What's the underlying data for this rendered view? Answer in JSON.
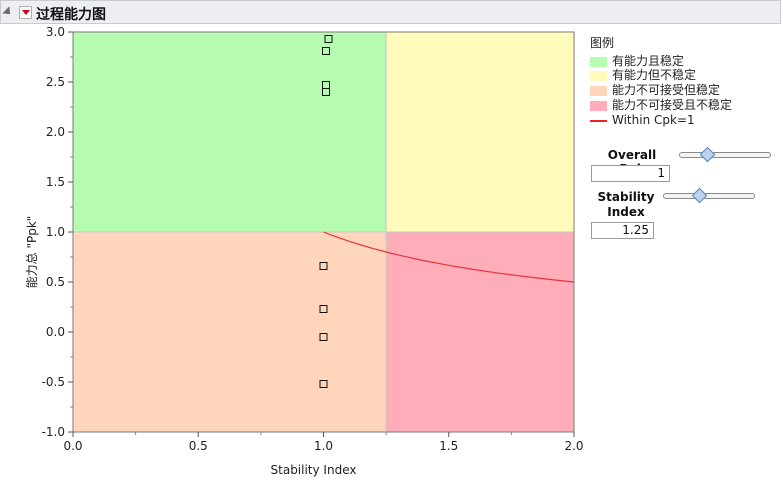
{
  "title": "过程能力图",
  "chart_data": {
    "type": "scatter",
    "xlabel": "Stability Index",
    "ylabel": "能力总 \"Ppk\"",
    "xlim": [
      0,
      2
    ],
    "ylim": [
      -1,
      3
    ],
    "x_ticks": [
      "0.0",
      "0.5",
      "1.0",
      "1.5",
      "2.0"
    ],
    "y_ticks": [
      "-1.0",
      "-0.5",
      "0.0",
      "0.5",
      "1.0",
      "1.5",
      "2.0",
      "2.5",
      "3.0"
    ],
    "x_tick_values": [
      0,
      0.5,
      1,
      1.5,
      2
    ],
    "y_tick_values": [
      -1,
      -0.5,
      0,
      0.5,
      1,
      1.5,
      2,
      2.5,
      3
    ],
    "thresholds": {
      "overall_ppk": 1,
      "stability_index": 1.25
    },
    "regions": [
      {
        "name": "有能力且稳定",
        "x": [
          0,
          1.25
        ],
        "y": [
          1,
          3
        ],
        "color": "#b5fcb0"
      },
      {
        "name": "有能力但不稳定",
        "x": [
          1.25,
          2
        ],
        "y": [
          1,
          3
        ],
        "color": "#fffcbb"
      },
      {
        "name": "能力不可接受但稳定",
        "x": [
          0,
          1.25
        ],
        "y": [
          -1,
          1
        ],
        "color": "#ffd6bc"
      },
      {
        "name": "能力不可接受且不稳定",
        "x": [
          1.25,
          2
        ],
        "y": [
          -1,
          1
        ],
        "color": "#ffadb9"
      }
    ],
    "points": [
      {
        "x": 1.02,
        "y": 2.93
      },
      {
        "x": 1.01,
        "y": 2.81
      },
      {
        "x": 1.01,
        "y": 2.47
      },
      {
        "x": 1.01,
        "y": 2.4
      },
      {
        "x": 1.0,
        "y": 0.66
      },
      {
        "x": 1.0,
        "y": 0.23
      },
      {
        "x": 1.0,
        "y": -0.05
      },
      {
        "x": 1.0,
        "y": -0.52
      }
    ],
    "curve": {
      "name": "Within Cpk=1",
      "color": "#e8333c",
      "x": [
        1.0,
        1.05,
        1.1,
        1.15,
        1.2,
        1.25,
        1.3,
        1.4,
        1.5,
        1.6,
        1.7,
        1.8,
        1.9,
        2.0
      ],
      "y": [
        1.0,
        0.952,
        0.909,
        0.87,
        0.833,
        0.8,
        0.769,
        0.714,
        0.667,
        0.625,
        0.588,
        0.556,
        0.526,
        0.5
      ]
    }
  },
  "legend": {
    "title": "图例",
    "items": [
      {
        "label": "有能力且稳定",
        "color": "#b5fcb0"
      },
      {
        "label": "有能力但不稳定",
        "color": "#fffcbb"
      },
      {
        "label": "能力不可接受但稳定",
        "color": "#ffd6bc"
      },
      {
        "label": "能力不可接受且不稳定",
        "color": "#ffadb9"
      }
    ],
    "line_label": "Within Cpk=1"
  },
  "controls": {
    "overall_ppk_label": "Overall Ppk",
    "overall_ppk_value": "1",
    "overall_ppk_slider_fraction": 0.29,
    "stability_label_line1": "Stability",
    "stability_label_line2": "Index",
    "stability_value": "1.25",
    "stability_slider_fraction": 0.38
  }
}
